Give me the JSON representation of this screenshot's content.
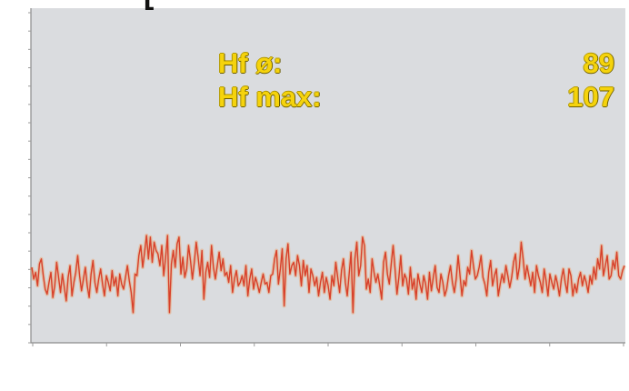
{
  "title_fragment": "[",
  "stats": {
    "avg_label": "Hf ø:",
    "avg_value": "89",
    "max_label": "Hf max:",
    "max_value": "107"
  },
  "colors": {
    "plot_background": "#dadcdf",
    "series_line": "#d8402a",
    "series_glow": "#f08a40",
    "stat_text": "#f5d30c"
  },
  "chart_data": {
    "type": "line",
    "title": "",
    "xlabel": "",
    "ylabel": "",
    "grid": false,
    "series": [
      {
        "name": "",
        "y": [
          1050,
          980,
          1020,
          940,
          1070,
          1100,
          1000,
          920,
          890,
          960,
          1020,
          870,
          940,
          1080,
          990,
          900,
          1010,
          930,
          850,
          990,
          1060,
          880,
          960,
          1020,
          1120,
          1000,
          910,
          980,
          1050,
          940,
          870,
          1010,
          1090,
          960,
          900,
          980,
          1040,
          950,
          880,
          1000,
          960,
          910,
          1030,
          940,
          990,
          880,
          1010,
          950,
          920,
          990,
          1060,
          970,
          900,
          780,
          1010,
          1000,
          1120,
          1180,
          1050,
          1140,
          1240,
          1100,
          1230,
          1080,
          1200,
          1150,
          1130,
          1060,
          1180,
          1000,
          1110,
          1240,
          780,
          1070,
          1150,
          1050,
          1190,
          1230,
          1010,
          1110,
          990,
          1040,
          1180,
          1090,
          980,
          1080,
          1200,
          1110,
          1000,
          1150,
          860,
          1020,
          1080,
          990,
          1180,
          1050,
          980,
          1060,
          1140,
          1030,
          1100,
          1000,
          1020,
          960,
          1060,
          900,
          980,
          1030,
          940,
          960,
          1000,
          940,
          1060,
          880,
          980,
          1040,
          920,
          990,
          950,
          900,
          960,
          1010,
          950,
          960,
          900,
          1000,
          1010,
          1100,
          1150,
          950,
          1040,
          1160,
          820,
          1100,
          1190,
          1010,
          1060,
          1080,
          1000,
          1120,
          1060,
          940,
          1090,
          1000,
          1060,
          900,
          1040,
          1000,
          940,
          990,
          880,
          960,
          1020,
          900,
          990,
          940,
          860,
          1000,
          940,
          1080,
          990,
          900,
          1030,
          1100,
          960,
          880,
          1010,
          1140,
          780,
          1100,
          1200,
          1000,
          1060,
          1230,
          1180,
          920,
          980,
          900,
          1100,
          1020,
          960,
          1010,
          940,
          860,
          1080,
          1140,
          1010,
          950,
          1070,
          1180,
          1040,
          890,
          990,
          1120,
          940,
          1010,
          980,
          890,
          1050,
          920,
          980,
          860,
          1010,
          950,
          900,
          1000,
          950,
          860,
          1020,
          910,
          990,
          1060,
          930,
          900,
          1010,
          960,
          880,
          920,
          1000,
          1060,
          960,
          900,
          980,
          1120,
          1000,
          880,
          970,
          940,
          1050,
          1010,
          1150,
          1060,
          980,
          1000,
          1050,
          1120,
          990,
          950,
          880,
          1020,
          1090,
          940,
          1000,
          1040,
          880,
          950,
          1010,
          960,
          1060,
          1000,
          930,
          990,
          1080,
          1130,
          980,
          1050,
          1200,
          1100,
          980,
          1060,
          1000,
          940,
          1020,
          900,
          1060,
          1000,
          960,
          900,
          1040,
          970,
          880,
          1010,
          960,
          920,
          1000,
          950,
          880,
          980,
          1040,
          960,
          900,
          1040,
          1000,
          880,
          950,
          900,
          980,
          1020,
          940,
          1000,
          960,
          900,
          1000,
          950,
          1050,
          980,
          1100,
          1040,
          1180,
          1000,
          1060,
          1120,
          980,
          1000,
          1090,
          1040,
          1140,
          1000,
          980,
          1030,
          1060
        ]
      }
    ],
    "ylim": [
      600,
      2600
    ]
  }
}
